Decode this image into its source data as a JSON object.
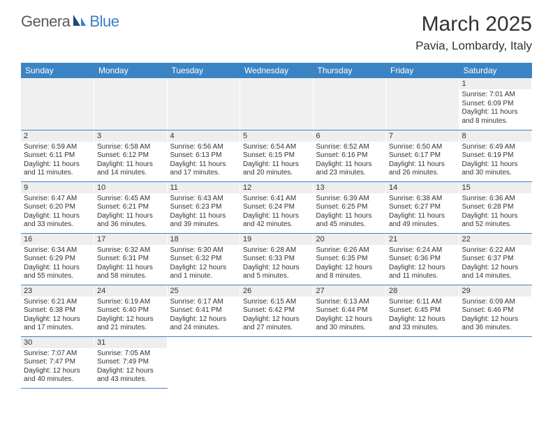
{
  "logo": {
    "part1": "Genera",
    "part2": "Blue"
  },
  "title": "March 2025",
  "location": "Pavia, Lombardy, Italy",
  "colors": {
    "header_bg": "#3b84c4",
    "header_text": "#ffffff",
    "daynum_bg": "#eeeeee",
    "border": "#3b84c4",
    "logo_gray": "#5a5a5a",
    "logo_blue": "#3a7fc4"
  },
  "daysOfWeek": [
    "Sunday",
    "Monday",
    "Tuesday",
    "Wednesday",
    "Thursday",
    "Friday",
    "Saturday"
  ],
  "firstWeekday": 6,
  "daysInMonth": 31,
  "days": {
    "1": {
      "sunrise": "7:01 AM",
      "sunset": "6:09 PM",
      "daylight": "11 hours and 8 minutes."
    },
    "2": {
      "sunrise": "6:59 AM",
      "sunset": "6:11 PM",
      "daylight": "11 hours and 11 minutes."
    },
    "3": {
      "sunrise": "6:58 AM",
      "sunset": "6:12 PM",
      "daylight": "11 hours and 14 minutes."
    },
    "4": {
      "sunrise": "6:56 AM",
      "sunset": "6:13 PM",
      "daylight": "11 hours and 17 minutes."
    },
    "5": {
      "sunrise": "6:54 AM",
      "sunset": "6:15 PM",
      "daylight": "11 hours and 20 minutes."
    },
    "6": {
      "sunrise": "6:52 AM",
      "sunset": "6:16 PM",
      "daylight": "11 hours and 23 minutes."
    },
    "7": {
      "sunrise": "6:50 AM",
      "sunset": "6:17 PM",
      "daylight": "11 hours and 26 minutes."
    },
    "8": {
      "sunrise": "6:49 AM",
      "sunset": "6:19 PM",
      "daylight": "11 hours and 30 minutes."
    },
    "9": {
      "sunrise": "6:47 AM",
      "sunset": "6:20 PM",
      "daylight": "11 hours and 33 minutes."
    },
    "10": {
      "sunrise": "6:45 AM",
      "sunset": "6:21 PM",
      "daylight": "11 hours and 36 minutes."
    },
    "11": {
      "sunrise": "6:43 AM",
      "sunset": "6:23 PM",
      "daylight": "11 hours and 39 minutes."
    },
    "12": {
      "sunrise": "6:41 AM",
      "sunset": "6:24 PM",
      "daylight": "11 hours and 42 minutes."
    },
    "13": {
      "sunrise": "6:39 AM",
      "sunset": "6:25 PM",
      "daylight": "11 hours and 45 minutes."
    },
    "14": {
      "sunrise": "6:38 AM",
      "sunset": "6:27 PM",
      "daylight": "11 hours and 49 minutes."
    },
    "15": {
      "sunrise": "6:36 AM",
      "sunset": "6:28 PM",
      "daylight": "11 hours and 52 minutes."
    },
    "16": {
      "sunrise": "6:34 AM",
      "sunset": "6:29 PM",
      "daylight": "11 hours and 55 minutes."
    },
    "17": {
      "sunrise": "6:32 AM",
      "sunset": "6:31 PM",
      "daylight": "11 hours and 58 minutes."
    },
    "18": {
      "sunrise": "6:30 AM",
      "sunset": "6:32 PM",
      "daylight": "12 hours and 1 minute."
    },
    "19": {
      "sunrise": "6:28 AM",
      "sunset": "6:33 PM",
      "daylight": "12 hours and 5 minutes."
    },
    "20": {
      "sunrise": "6:26 AM",
      "sunset": "6:35 PM",
      "daylight": "12 hours and 8 minutes."
    },
    "21": {
      "sunrise": "6:24 AM",
      "sunset": "6:36 PM",
      "daylight": "12 hours and 11 minutes."
    },
    "22": {
      "sunrise": "6:22 AM",
      "sunset": "6:37 PM",
      "daylight": "12 hours and 14 minutes."
    },
    "23": {
      "sunrise": "6:21 AM",
      "sunset": "6:38 PM",
      "daylight": "12 hours and 17 minutes."
    },
    "24": {
      "sunrise": "6:19 AM",
      "sunset": "6:40 PM",
      "daylight": "12 hours and 21 minutes."
    },
    "25": {
      "sunrise": "6:17 AM",
      "sunset": "6:41 PM",
      "daylight": "12 hours and 24 minutes."
    },
    "26": {
      "sunrise": "6:15 AM",
      "sunset": "6:42 PM",
      "daylight": "12 hours and 27 minutes."
    },
    "27": {
      "sunrise": "6:13 AM",
      "sunset": "6:44 PM",
      "daylight": "12 hours and 30 minutes."
    },
    "28": {
      "sunrise": "6:11 AM",
      "sunset": "6:45 PM",
      "daylight": "12 hours and 33 minutes."
    },
    "29": {
      "sunrise": "6:09 AM",
      "sunset": "6:46 PM",
      "daylight": "12 hours and 36 minutes."
    },
    "30": {
      "sunrise": "7:07 AM",
      "sunset": "7:47 PM",
      "daylight": "12 hours and 40 minutes."
    },
    "31": {
      "sunrise": "7:05 AM",
      "sunset": "7:49 PM",
      "daylight": "12 hours and 43 minutes."
    }
  },
  "labels": {
    "sunrise": "Sunrise:",
    "sunset": "Sunset:",
    "daylight": "Daylight:"
  }
}
